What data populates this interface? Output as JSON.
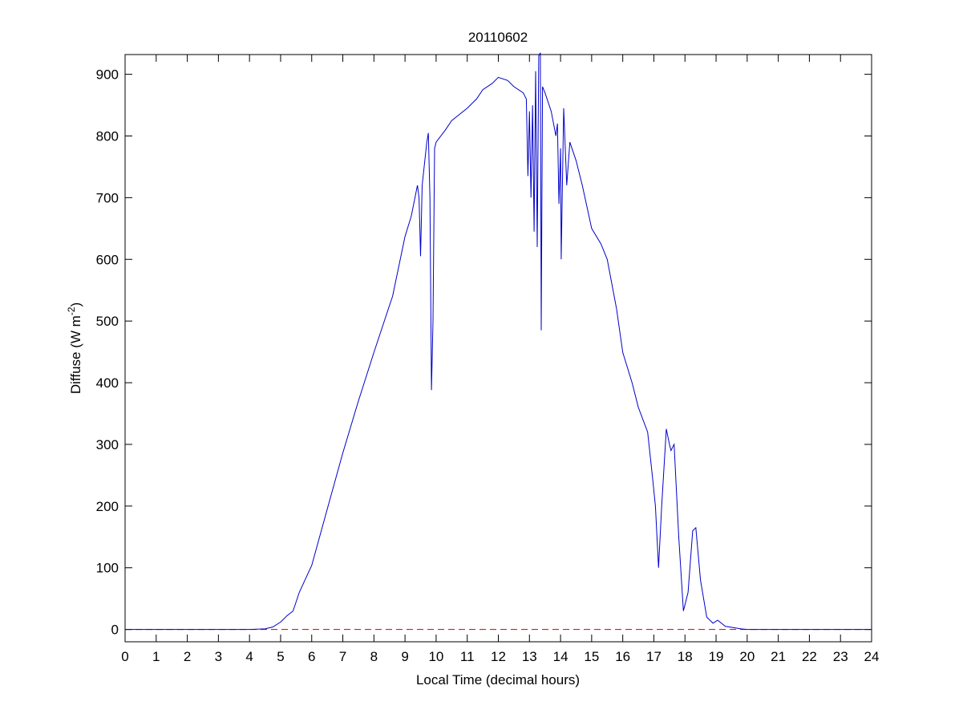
{
  "chart_data": {
    "type": "line",
    "title": "20110602",
    "xlabel": "Local Time (decimal hours)",
    "ylabel_main": "Diffuse (W m",
    "ylabel_sup": "-2",
    "ylabel_close": ")",
    "xlim": [
      0,
      24
    ],
    "ylim": [
      -20,
      932
    ],
    "xticks": [
      0,
      1,
      2,
      3,
      4,
      5,
      6,
      7,
      8,
      9,
      10,
      11,
      12,
      13,
      14,
      15,
      16,
      17,
      18,
      19,
      20,
      21,
      22,
      23,
      24
    ],
    "yticks": [
      0,
      100,
      200,
      300,
      400,
      500,
      600,
      700,
      800,
      900
    ],
    "grid": false,
    "reference_line": {
      "y": 0,
      "color": "#cc0000",
      "style": "dashed"
    },
    "series": [
      {
        "name": "Diffuse",
        "color": "#0000cc",
        "x": [
          0,
          1,
          2,
          3,
          4,
          4.5,
          4.75,
          5,
          5.2,
          5.4,
          5.6,
          5.8,
          6,
          6.5,
          7,
          7.5,
          8,
          8.5,
          8.6,
          9,
          9.2,
          9.4,
          9.45,
          9.5,
          9.55,
          9.7,
          9.75,
          9.8,
          9.85,
          9.9,
          9.95,
          10,
          10.3,
          10.5,
          11,
          11.3,
          11.5,
          11.8,
          12,
          12.3,
          12.5,
          12.8,
          12.9,
          12.95,
          13.0,
          13.05,
          13.1,
          13.15,
          13.2,
          13.25,
          13.3,
          13.35,
          13.38,
          13.42,
          13.5,
          13.7,
          13.85,
          13.9,
          13.95,
          14.0,
          14.02,
          14.1,
          14.2,
          14.3,
          14.5,
          14.7,
          15,
          15.3,
          15.5,
          15.8,
          16,
          16.3,
          16.5,
          16.8,
          16.95,
          17.05,
          17.15,
          17.25,
          17.4,
          17.5,
          17.55,
          17.65,
          17.8,
          17.95,
          18.1,
          18.25,
          18.35,
          18.5,
          18.7,
          18.9,
          19.05,
          19.3,
          19.8,
          20,
          21,
          22,
          23,
          24
        ],
        "y": [
          0,
          0,
          0,
          0,
          0,
          1,
          4,
          12,
          22,
          30,
          60,
          82,
          104,
          195,
          286,
          370,
          449,
          525,
          540,
          637,
          670,
          720,
          700,
          605,
          720,
          790,
          805,
          700,
          388,
          500,
          780,
          790,
          810,
          825,
          845,
          860,
          875,
          885,
          895,
          890,
          880,
          870,
          860,
          735,
          840,
          700,
          850,
          645,
          905,
          620,
          930,
          935,
          485,
          880,
          870,
          840,
          800,
          820,
          690,
          780,
          600,
          845,
          720,
          790,
          760,
          720,
          650,
          625,
          600,
          520,
          449,
          400,
          360,
          320,
          250,
          200,
          100,
          200,
          325,
          300,
          290,
          300,
          150,
          30,
          60,
          160,
          165,
          80,
          20,
          10,
          15,
          5,
          1,
          0,
          0,
          0,
          0,
          0
        ]
      }
    ]
  }
}
